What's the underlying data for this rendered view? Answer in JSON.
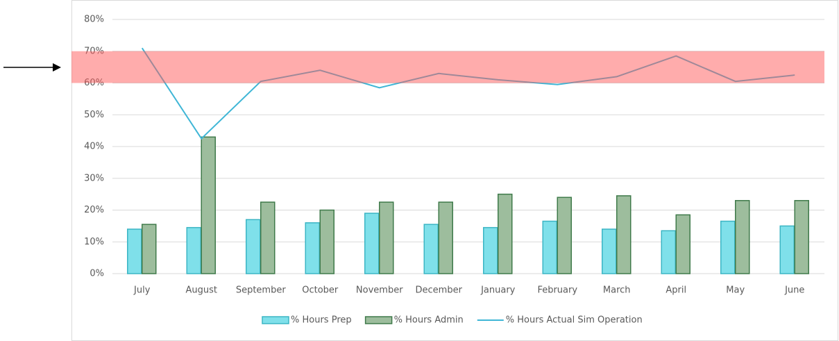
{
  "chart_data": {
    "type": "bar_line",
    "categories": [
      "July",
      "August",
      "September",
      "October",
      "November",
      "December",
      "January",
      "February",
      "March",
      "April",
      "May",
      "June"
    ],
    "series": [
      {
        "name": "% Hours Prep",
        "type": "bar",
        "color": "#7fe0ea",
        "values": [
          14,
          14.5,
          17,
          16,
          19,
          15.5,
          14.5,
          16.5,
          14,
          13.5,
          16.5,
          15
        ]
      },
      {
        "name": "% Hours Admin",
        "type": "bar",
        "color": "#9dbd9d",
        "values": [
          15.5,
          43,
          22.5,
          20,
          22.5,
          22.5,
          25,
          24,
          24.5,
          18.5,
          23,
          23
        ]
      },
      {
        "name": "% Hours Actual Sim Operation",
        "type": "line",
        "color": "#3fb6d6",
        "values": [
          71,
          42.5,
          60.5,
          64,
          58.5,
          63,
          61,
          59.5,
          62,
          68.5,
          60.5,
          62.5
        ]
      }
    ],
    "target_band": [
      60,
      70
    ],
    "ylim": [
      0,
      80
    ],
    "yticks": [
      {
        "value": 0,
        "label": "0%"
      },
      {
        "value": 10,
        "label": "10%"
      },
      {
        "value": 20,
        "label": "20%"
      },
      {
        "value": 30,
        "label": "30%"
      },
      {
        "value": 40,
        "label": "40%"
      },
      {
        "value": 50,
        "label": "50%"
      },
      {
        "value": 60,
        "label": "60%"
      },
      {
        "value": 70,
        "label": "70%"
      },
      {
        "value": 80,
        "label": "80%"
      }
    ],
    "grid": true,
    "legend": "bottom"
  }
}
